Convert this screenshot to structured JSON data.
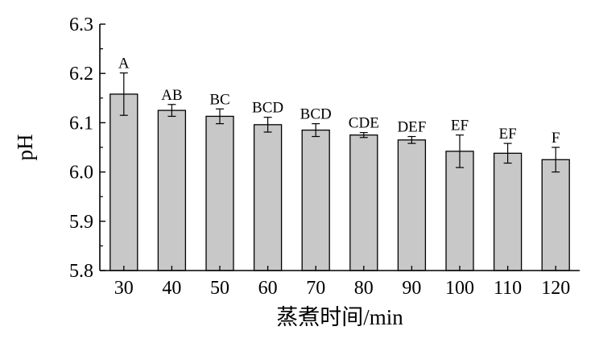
{
  "chart_data": {
    "type": "bar",
    "categories": [
      "30",
      "40",
      "50",
      "60",
      "70",
      "80",
      "90",
      "100",
      "110",
      "120"
    ],
    "values": [
      6.158,
      6.125,
      6.113,
      6.096,
      6.085,
      6.075,
      6.065,
      6.042,
      6.038,
      6.025
    ],
    "errors": [
      0.043,
      0.012,
      0.015,
      0.015,
      0.013,
      0.005,
      0.007,
      0.033,
      0.02,
      0.025
    ],
    "significance_letters": [
      "A",
      "AB",
      "BC",
      "BCD",
      "BCD",
      "CDE",
      "DEF",
      "EF",
      "EF",
      "F"
    ],
    "xlabel": "蒸煮时间/min",
    "ylabel": "pH",
    "ylim": [
      5.8,
      6.3
    ],
    "yticks": [
      "5.8",
      "5.9",
      "6.0",
      "6.1",
      "6.2",
      "6.3"
    ],
    "grid": false,
    "legend": "none",
    "colors": {
      "bar_fill": "#c8c8c8",
      "bar_stroke": "#000000",
      "axis": "#000000"
    }
  }
}
